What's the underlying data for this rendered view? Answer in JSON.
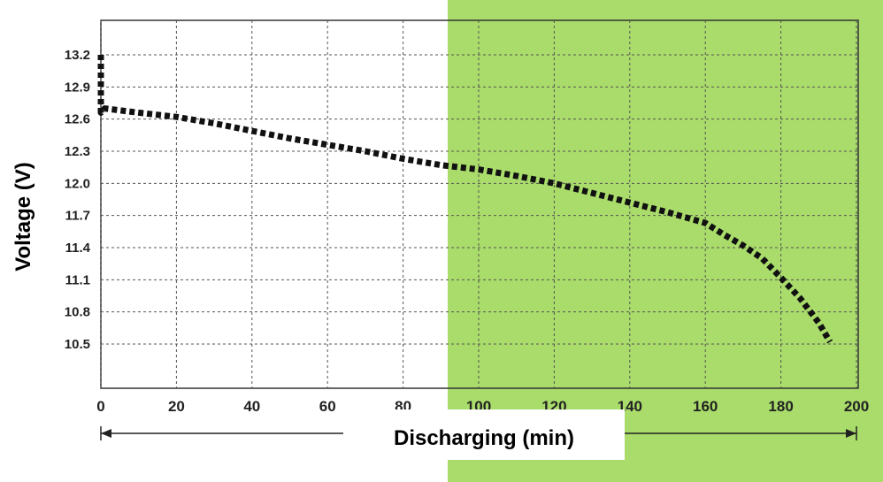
{
  "chart_data": {
    "type": "line",
    "title": "",
    "xlabel": "Discharging (min)",
    "ylabel": "Voltage (V)",
    "xlim": [
      0,
      200
    ],
    "ylim": [
      10.1,
      13.5
    ],
    "x_ticks": [
      "0",
      "20",
      "40",
      "60",
      "80",
      "100",
      "120",
      "140",
      "160",
      "180",
      "200"
    ],
    "y_ticks": [
      "13.2",
      "12.9",
      "12.6",
      "12.3",
      "12.0",
      "11.7",
      "11.4",
      "11.1",
      "10.8",
      "10.5"
    ],
    "grid": true,
    "highlight_color": "#a9dc6a",
    "line_color": "#111111",
    "series": [
      {
        "x": [
          0,
          0,
          0,
          0,
          1,
          10,
          20,
          30,
          40,
          50,
          60,
          70,
          80,
          90,
          100,
          110,
          120,
          130,
          140,
          150,
          160,
          165,
          170,
          175,
          180,
          185,
          190,
          193
        ],
        "y": [
          13.2,
          12.95,
          12.75,
          12.66,
          12.7,
          12.66,
          12.62,
          12.56,
          12.49,
          12.42,
          12.36,
          12.3,
          12.23,
          12.17,
          12.13,
          12.07,
          12.0,
          11.91,
          11.82,
          11.73,
          11.63,
          11.52,
          11.42,
          11.3,
          11.12,
          10.93,
          10.7,
          10.52
        ]
      }
    ]
  }
}
